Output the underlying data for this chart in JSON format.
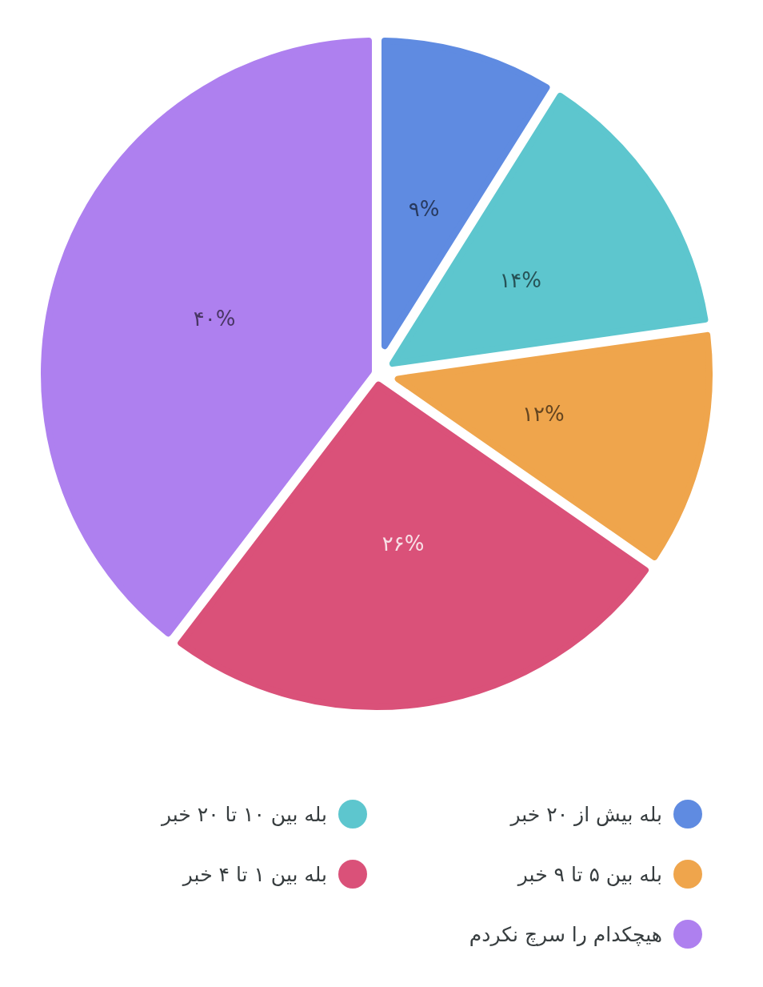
{
  "chart_data": {
    "type": "pie",
    "categories": [
      "بله بیش از ۲۰ خبر",
      "بله بین ۱۰ تا ۲۰ خبر",
      "بله بین ۵ تا ۹ خبر",
      "بله بین ۱ تا ۴ خبر",
      "هیچکدام را سرچ نکردم"
    ],
    "values": [
      9,
      14,
      12,
      26,
      40
    ],
    "colors": [
      "#5f8be1",
      "#5dc6ce",
      "#efa54c",
      "#da5179",
      "#ae80ef"
    ],
    "value_labels": [
      "۹%",
      "۱۴%",
      "۱۲%",
      "۲۶%",
      "۴۰%"
    ],
    "legend": "bottom"
  }
}
